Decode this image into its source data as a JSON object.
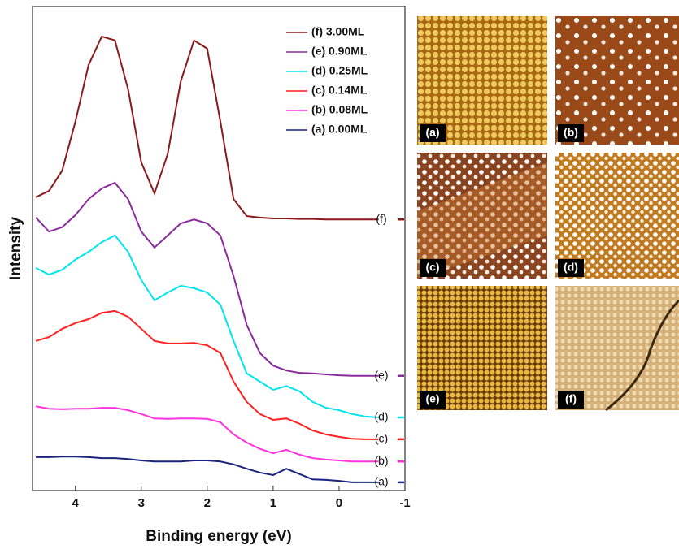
{
  "chart_data": {
    "type": "line",
    "xlabel": "Binding energy (eV)",
    "ylabel": "Intensity",
    "xlim": [
      4.65,
      -1
    ],
    "xticks": [
      4,
      3,
      2,
      1,
      0,
      -1
    ],
    "ylim": [
      0,
      100
    ],
    "x": [
      4.6,
      4.4,
      4.2,
      4.0,
      3.8,
      3.6,
      3.4,
      3.2,
      3.0,
      2.8,
      2.6,
      2.4,
      2.2,
      2.0,
      1.8,
      1.6,
      1.4,
      1.2,
      1.0,
      0.8,
      0.6,
      0.4,
      0.2,
      0.0,
      -0.2,
      -0.4,
      -0.6
    ],
    "series": [
      {
        "name": "(f) 3.00ML",
        "end_label": "(f)",
        "color": "#8b1a1a",
        "values": [
          60.6,
          61.9,
          66.1,
          76.2,
          87.9,
          93.8,
          93.0,
          82.9,
          67.8,
          61.4,
          69.5,
          84.6,
          93.0,
          91.3,
          76.2,
          60.2,
          56.7,
          56.4,
          56.2,
          56.2,
          56.1,
          56.1,
          56.0,
          56.0,
          56.0,
          56.0,
          56.0
        ]
      },
      {
        "name": "(e) 0.90ML",
        "end_label": "(e)",
        "color": "#8b2a9b",
        "values": [
          56.4,
          53.5,
          54.4,
          56.9,
          60.2,
          62.4,
          63.6,
          60.2,
          53.5,
          50.2,
          52.7,
          55.2,
          56.0,
          55.2,
          52.7,
          44.3,
          34.2,
          28.4,
          25.8,
          24.8,
          24.3,
          24.2,
          24.0,
          23.8,
          23.7,
          23.7,
          23.7
        ]
      },
      {
        "name": "(d) 0.25ML",
        "end_label": "(d)",
        "color": "#00e5ee",
        "values": [
          46.0,
          44.6,
          45.6,
          47.7,
          49.3,
          51.3,
          52.7,
          49.3,
          43.5,
          39.3,
          40.9,
          42.3,
          41.8,
          40.9,
          38.4,
          30.9,
          24.2,
          22.5,
          20.8,
          21.6,
          20.5,
          18.3,
          17.1,
          16.6,
          15.8,
          15.3,
          15.1
        ]
      },
      {
        "name": "(c) 0.14ML",
        "end_label": "(c)",
        "color": "#ff2020",
        "values": [
          30.9,
          31.7,
          33.4,
          34.6,
          35.4,
          36.7,
          37.1,
          35.9,
          33.4,
          30.9,
          30.4,
          30.4,
          30.5,
          30.0,
          28.4,
          22.5,
          18.3,
          15.8,
          14.6,
          14.9,
          13.8,
          12.4,
          11.6,
          11.1,
          10.7,
          10.6,
          10.6
        ]
      },
      {
        "name": "(b) 0.08ML",
        "end_label": "(b)",
        "color": "#ff33dd",
        "values": [
          17.4,
          16.9,
          16.8,
          16.9,
          16.9,
          17.1,
          17.1,
          16.6,
          15.8,
          14.9,
          14.8,
          14.9,
          14.9,
          14.8,
          14.1,
          11.6,
          9.9,
          8.6,
          7.7,
          8.4,
          7.4,
          6.7,
          6.4,
          6.2,
          6.0,
          6.0,
          6.0
        ]
      },
      {
        "name": "(a)  0.00ML",
        "end_label": "(a)",
        "color": "#1a237e",
        "values": [
          6.9,
          6.9,
          7.0,
          7.0,
          6.9,
          6.7,
          6.7,
          6.5,
          6.2,
          6.0,
          6.0,
          6.0,
          6.2,
          6.2,
          6.0,
          5.4,
          4.5,
          3.7,
          3.2,
          4.5,
          3.4,
          2.3,
          2.2,
          2.0,
          1.7,
          1.7,
          1.7
        ]
      }
    ],
    "image_labels": [
      "(a)",
      "(b)",
      "(c)",
      "(d)",
      "(e)",
      "(f)"
    ]
  }
}
